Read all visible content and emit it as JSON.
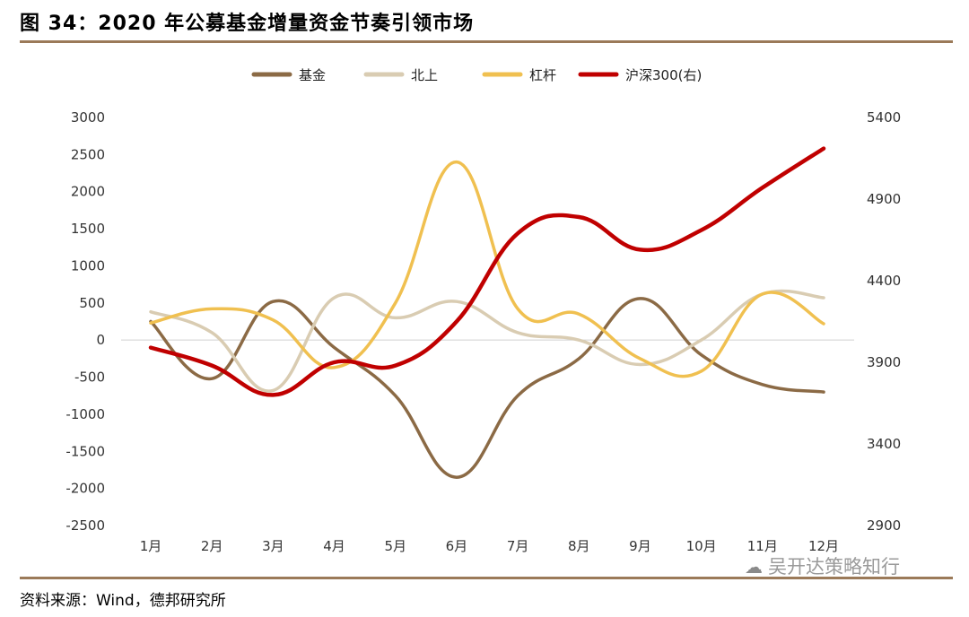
{
  "header": {
    "title": "图 34：2020 年公募基金增量资金节奏引领市场"
  },
  "footer": {
    "source": "资料来源：Wind，德邦研究所"
  },
  "watermark": {
    "text": "吴开达策略知行",
    "icon": "wechat-icon"
  },
  "chart_data": {
    "type": "line",
    "title": "",
    "categories": [
      "1月",
      "2月",
      "3月",
      "4月",
      "5月",
      "6月",
      "7月",
      "8月",
      "9月",
      "10月",
      "11月",
      "12月"
    ],
    "y_left": {
      "range": [
        -2500,
        3000
      ],
      "ticks": [
        3000,
        2500,
        2000,
        1500,
        1000,
        500,
        0,
        -500,
        -1000,
        -1500,
        -2000,
        -2500
      ]
    },
    "y_right": {
      "range": [
        2900,
        5400
      ],
      "ticks": [
        5400,
        4900,
        4400,
        3900,
        3400,
        2900
      ]
    },
    "legend_position": "top",
    "series": [
      {
        "name": "基金",
        "axis": "left",
        "color": "#8b6a45",
        "values": [
          250,
          -520,
          520,
          -100,
          -750,
          -1850,
          -750,
          -250,
          560,
          -200,
          -600,
          -700
        ]
      },
      {
        "name": "北上",
        "axis": "left",
        "color": "#d9ccb2",
        "values": [
          380,
          100,
          -680,
          570,
          300,
          520,
          100,
          0,
          -330,
          0,
          620,
          570
        ]
      },
      {
        "name": "杠杆",
        "axis": "left",
        "color": "#f0c050",
        "values": [
          230,
          420,
          270,
          -370,
          500,
          2400,
          420,
          350,
          -250,
          -420,
          620,
          220
        ]
      },
      {
        "name": "沪深300(右)",
        "axis": "right",
        "color": "#c00000",
        "values": [
          3990,
          3880,
          3700,
          3900,
          3880,
          4150,
          4690,
          4790,
          4590,
          4710,
          4970,
          5210
        ]
      }
    ]
  }
}
